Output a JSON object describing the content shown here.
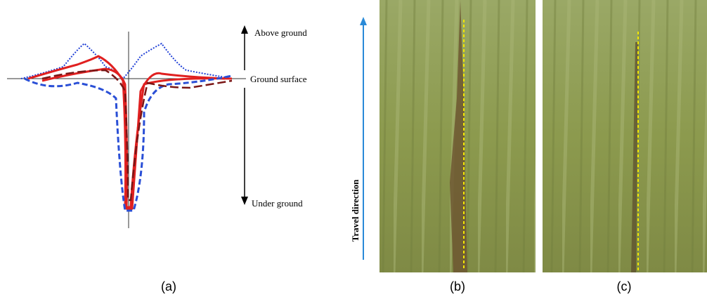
{
  "diagram": {
    "labels": {
      "above": "Above ground",
      "surface": "Ground surface",
      "under": "Under ground",
      "travel": "Travel direction"
    },
    "captions": [
      "(a)",
      "(b)",
      "(c)"
    ]
  }
}
